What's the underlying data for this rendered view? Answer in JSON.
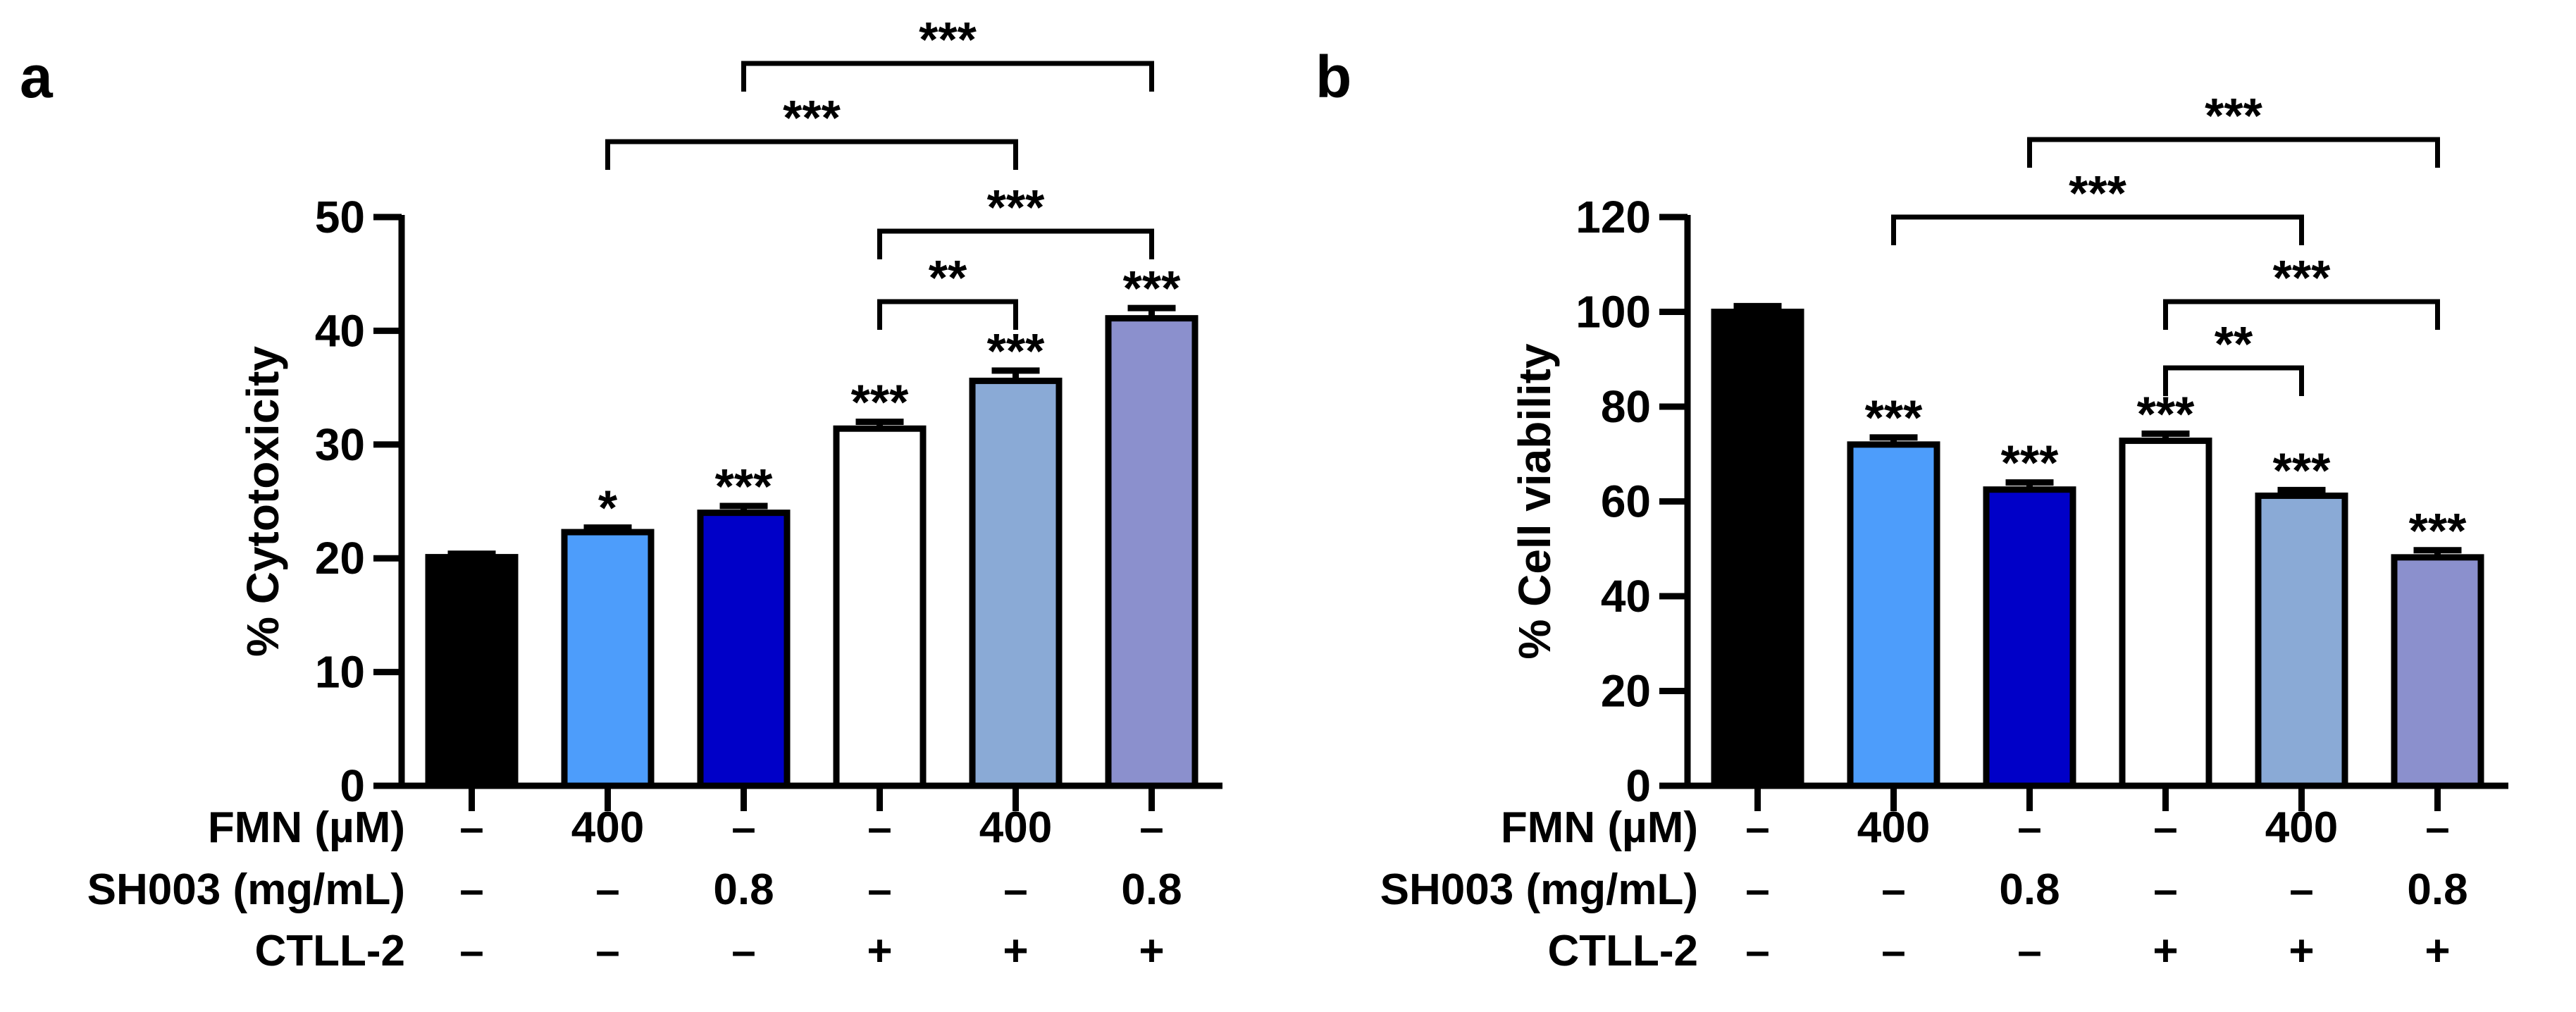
{
  "chart_data": [
    {
      "panel_label": "a",
      "type": "bar",
      "ylabel": "% Cytotoxicity",
      "ylim": [
        0,
        50
      ],
      "yticks": [
        "0",
        "10",
        "20",
        "30",
        "40",
        "50"
      ],
      "ytick_values": [
        0,
        10,
        20,
        30,
        40,
        50
      ],
      "grid": false,
      "values": [
        20.1,
        22.3,
        24.0,
        31.4,
        35.6,
        41.1
      ],
      "errors": [
        0.3,
        0.4,
        0.6,
        0.6,
        0.9,
        0.9
      ],
      "colors": [
        "#000000",
        "#4d9dfb",
        "#0000c8",
        "#ffffff",
        "#8aaad6",
        "#8b90cd"
      ],
      "bar_sig": [
        "",
        "*",
        "***",
        "***",
        "***",
        "***"
      ],
      "brackets": [
        {
          "from": 3,
          "to": 4,
          "label": "**"
        },
        {
          "from": 3,
          "to": 5,
          "label": "***"
        },
        {
          "from": 1,
          "to": 4,
          "label": "***"
        },
        {
          "from": 2,
          "to": 5,
          "label": "***"
        }
      ],
      "conditions": [
        {
          "label": "FMN (µM)",
          "values": [
            "–",
            "400",
            "–",
            "–",
            "400",
            "–"
          ]
        },
        {
          "label": "SH003 (mg/mL)",
          "values": [
            "–",
            "–",
            "0.8",
            "–",
            "–",
            "0.8"
          ]
        },
        {
          "label": "CTLL-2",
          "values": [
            "–",
            "–",
            "–",
            "+",
            "+",
            "+"
          ]
        }
      ]
    },
    {
      "panel_label": "b",
      "type": "bar",
      "ylabel": "% Cell viability",
      "ylim": [
        0,
        120
      ],
      "yticks": [
        "0",
        "20",
        "40",
        "60",
        "80",
        "100",
        "120"
      ],
      "ytick_values": [
        0,
        20,
        40,
        60,
        80,
        100,
        120
      ],
      "grid": false,
      "values": [
        100.0,
        72.0,
        62.5,
        72.8,
        61.2,
        48.2
      ],
      "errors": [
        1.2,
        1.5,
        1.5,
        1.5,
        1.2,
        1.5
      ],
      "colors": [
        "#000000",
        "#4d9dfb",
        "#0000c8",
        "#ffffff",
        "#8aaad6",
        "#8b90cd"
      ],
      "bar_sig": [
        "",
        "***",
        "***",
        "***",
        "***",
        "***"
      ],
      "brackets": [
        {
          "from": 3,
          "to": 4,
          "label": "**"
        },
        {
          "from": 3,
          "to": 5,
          "label": "***"
        },
        {
          "from": 1,
          "to": 4,
          "label": "***"
        },
        {
          "from": 2,
          "to": 5,
          "label": "***"
        }
      ],
      "conditions": [
        {
          "label": "FMN (µM)",
          "values": [
            "–",
            "400",
            "–",
            "–",
            "400",
            "–"
          ]
        },
        {
          "label": "SH003 (mg/mL)",
          "values": [
            "–",
            "–",
            "0.8",
            "–",
            "–",
            "0.8"
          ]
        },
        {
          "label": "CTLL-2",
          "values": [
            "–",
            "–",
            "–",
            "+",
            "+",
            "+"
          ]
        }
      ]
    }
  ]
}
